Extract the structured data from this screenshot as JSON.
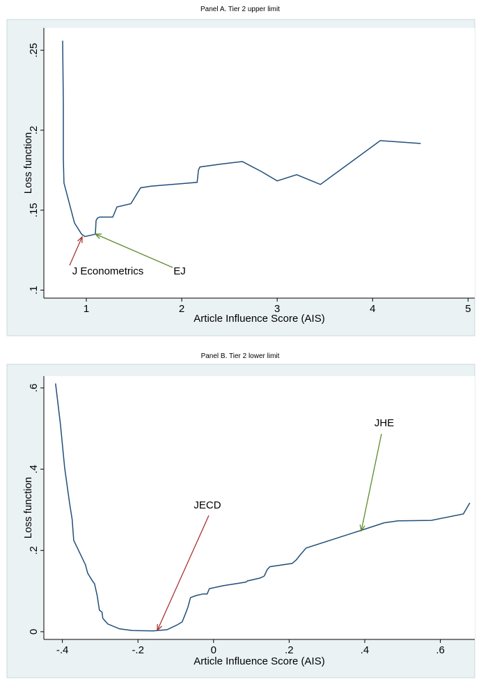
{
  "chart_data": [
    {
      "type": "line",
      "title": "Panel A. Tier 2 upper limit",
      "xlabel": "Article Influence Score (AIS)",
      "ylabel": "Loss function",
      "xlim": [
        0.555,
        5.07
      ],
      "ylim": [
        0.095,
        0.264
      ],
      "xticks": [
        1,
        2,
        3,
        4,
        5
      ],
      "yticks": [
        {
          "value": 0.1,
          "label": ".1"
        },
        {
          "value": 0.15,
          "label": ".15"
        },
        {
          "value": 0.2,
          "label": ".2"
        },
        {
          "value": 0.25,
          "label": ".25"
        }
      ],
      "series": [
        {
          "name": "Loss",
          "color": "#1f4e79",
          "x": [
            0.752,
            0.759,
            0.759,
            0.766,
            0.876,
            0.95,
            0.985,
            1.095,
            1.102,
            1.117,
            1.14,
            1.277,
            1.321,
            1.467,
            1.569,
            1.679,
            2.161,
            2.175,
            2.19,
            2.4,
            2.635,
            2.839,
            3.0,
            3.204,
            3.453,
            4.08,
            4.504
          ],
          "values": [
            0.256,
            0.216,
            0.182,
            0.167,
            0.142,
            0.135,
            0.1335,
            0.135,
            0.1435,
            0.145,
            0.1457,
            0.1457,
            0.152,
            0.154,
            0.164,
            0.165,
            0.1674,
            0.175,
            0.177,
            0.1787,
            0.1804,
            0.174,
            0.1683,
            0.1722,
            0.1661,
            0.1935,
            0.1917
          ]
        }
      ],
      "annotations": [
        {
          "text": "J Econometrics",
          "color": "#a83232"
        },
        {
          "text": "EJ",
          "color": "#5a8a2a"
        }
      ]
    },
    {
      "type": "line",
      "title": "Panel B. Tier 2 lower limit",
      "xlabel": "Article Influence Score (AIS)",
      "ylabel": "Loss function",
      "xlim": [
        -0.449,
        0.691
      ],
      "ylim": [
        -0.019,
        0.629
      ],
      "xticks": [
        {
          "value": -0.4,
          "label": "-.4"
        },
        {
          "value": -0.2,
          "label": "-.2"
        },
        0,
        {
          "value": 0.2,
          "label": ".2"
        },
        {
          "value": 0.4,
          "label": ".4"
        },
        {
          "value": 0.6,
          "label": ".6"
        }
      ],
      "yticks": [
        0,
        {
          "value": 0.2,
          "label": ".2"
        },
        {
          "value": 0.4,
          "label": ".4"
        },
        {
          "value": 0.6,
          "label": ".6"
        }
      ],
      "series": [
        {
          "name": "Loss",
          "color": "#1f4e79",
          "x": [
            -0.418,
            -0.405,
            -0.394,
            -0.381,
            -0.374,
            -0.37,
            -0.339,
            -0.333,
            -0.322,
            -0.315,
            -0.308,
            -0.302,
            -0.295,
            -0.293,
            -0.28,
            -0.249,
            -0.215,
            -0.16,
            -0.123,
            -0.096,
            -0.083,
            -0.074,
            -0.068,
            -0.061,
            -0.046,
            -0.028,
            -0.017,
            -0.011,
            0.024,
            0.085,
            0.09,
            0.123,
            0.134,
            0.142,
            0.149,
            0.208,
            0.219,
            0.23,
            0.245,
            0.392,
            0.451,
            0.488,
            0.576,
            0.661,
            0.678
          ],
          "values": [
            0.611,
            0.509,
            0.403,
            0.317,
            0.276,
            0.225,
            0.165,
            0.144,
            0.127,
            0.118,
            0.089,
            0.053,
            0.048,
            0.033,
            0.019,
            0.007,
            0.003,
            0.002,
            0.005,
            0.017,
            0.024,
            0.045,
            0.06,
            0.084,
            0.089,
            0.093,
            0.093,
            0.106,
            0.113,
            0.122,
            0.125,
            0.132,
            0.137,
            0.153,
            0.16,
            0.168,
            0.177,
            0.19,
            0.206,
            0.25,
            0.268,
            0.273,
            0.274,
            0.29,
            0.317
          ]
        }
      ],
      "annotations": [
        {
          "text": "JECD",
          "color": "#a83232"
        },
        {
          "text": "JHE",
          "color": "#5a8a2a"
        }
      ]
    }
  ]
}
